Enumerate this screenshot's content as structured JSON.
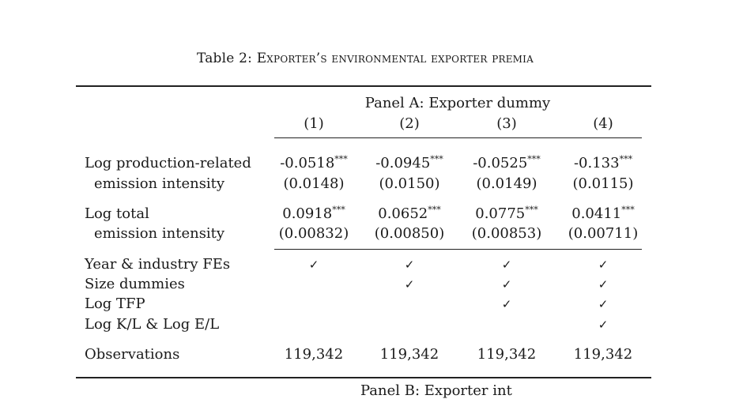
{
  "caption": {
    "prefix": "Table 2: ",
    "title": "Exporter’s environmental exporter premia"
  },
  "panel_a": {
    "header": "Panel A: Exporter dummy",
    "columns": [
      "(1)",
      "(2)",
      "(3)",
      "(4)"
    ],
    "rows": [
      {
        "label_line1": "Log production-related",
        "label_line2": "emission intensity",
        "coefs": [
          "-0.0518",
          "-0.0945",
          "-0.0525",
          "-0.133"
        ],
        "stars": [
          "***",
          "***",
          "***",
          "***"
        ],
        "ses": [
          "(0.0148)",
          "(0.0150)",
          "(0.0149)",
          "(0.0115)"
        ]
      },
      {
        "label_line1": "Log total",
        "label_line2": "emission intensity",
        "coefs": [
          "0.0918",
          "0.0652",
          "0.0775",
          "0.0411"
        ],
        "stars": [
          "***",
          "***",
          "***",
          "***"
        ],
        "ses": [
          "(0.00832)",
          "(0.00850)",
          "(0.00853)",
          "(0.00711)"
        ]
      }
    ],
    "controls": [
      {
        "label": "Year & industry FEs",
        "marks": [
          "✓",
          "✓",
          "✓",
          "✓"
        ]
      },
      {
        "label": "Size dummies",
        "marks": [
          "",
          "✓",
          "✓",
          "✓"
        ]
      },
      {
        "label": "Log TFP",
        "marks": [
          "",
          "",
          "✓",
          "✓"
        ]
      },
      {
        "label": "Log K/L & Log E/L",
        "marks": [
          "",
          "",
          "",
          "✓"
        ]
      }
    ],
    "observations": {
      "label": "Observations",
      "values": [
        "119,342",
        "119,342",
        "119,342",
        "119,342"
      ]
    }
  },
  "panel_b": {
    "header_partial": "Panel B: Exporter int"
  }
}
